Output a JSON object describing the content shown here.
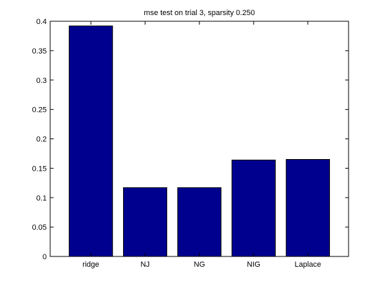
{
  "chart_data": {
    "type": "bar",
    "title": "mse test on trial 3, sparsity 0.250",
    "xlabel": "",
    "ylabel": "",
    "categories": [
      "ridge",
      "NJ",
      "NG",
      "NIG",
      "Laplace"
    ],
    "values": [
      0.392,
      0.117,
      0.117,
      0.164,
      0.165
    ],
    "ylim": [
      0,
      0.4
    ],
    "yticks": [
      0,
      0.05,
      0.1,
      0.15,
      0.2,
      0.25,
      0.3,
      0.35,
      0.4
    ],
    "ytick_labels": [
      "0",
      "0.05",
      "0.1",
      "0.15",
      "0.2",
      "0.25",
      "0.3",
      "0.35",
      "0.4"
    ],
    "grid": false,
    "legend": "none",
    "bar_color": "#00008F",
    "edge_color": "#000000"
  }
}
